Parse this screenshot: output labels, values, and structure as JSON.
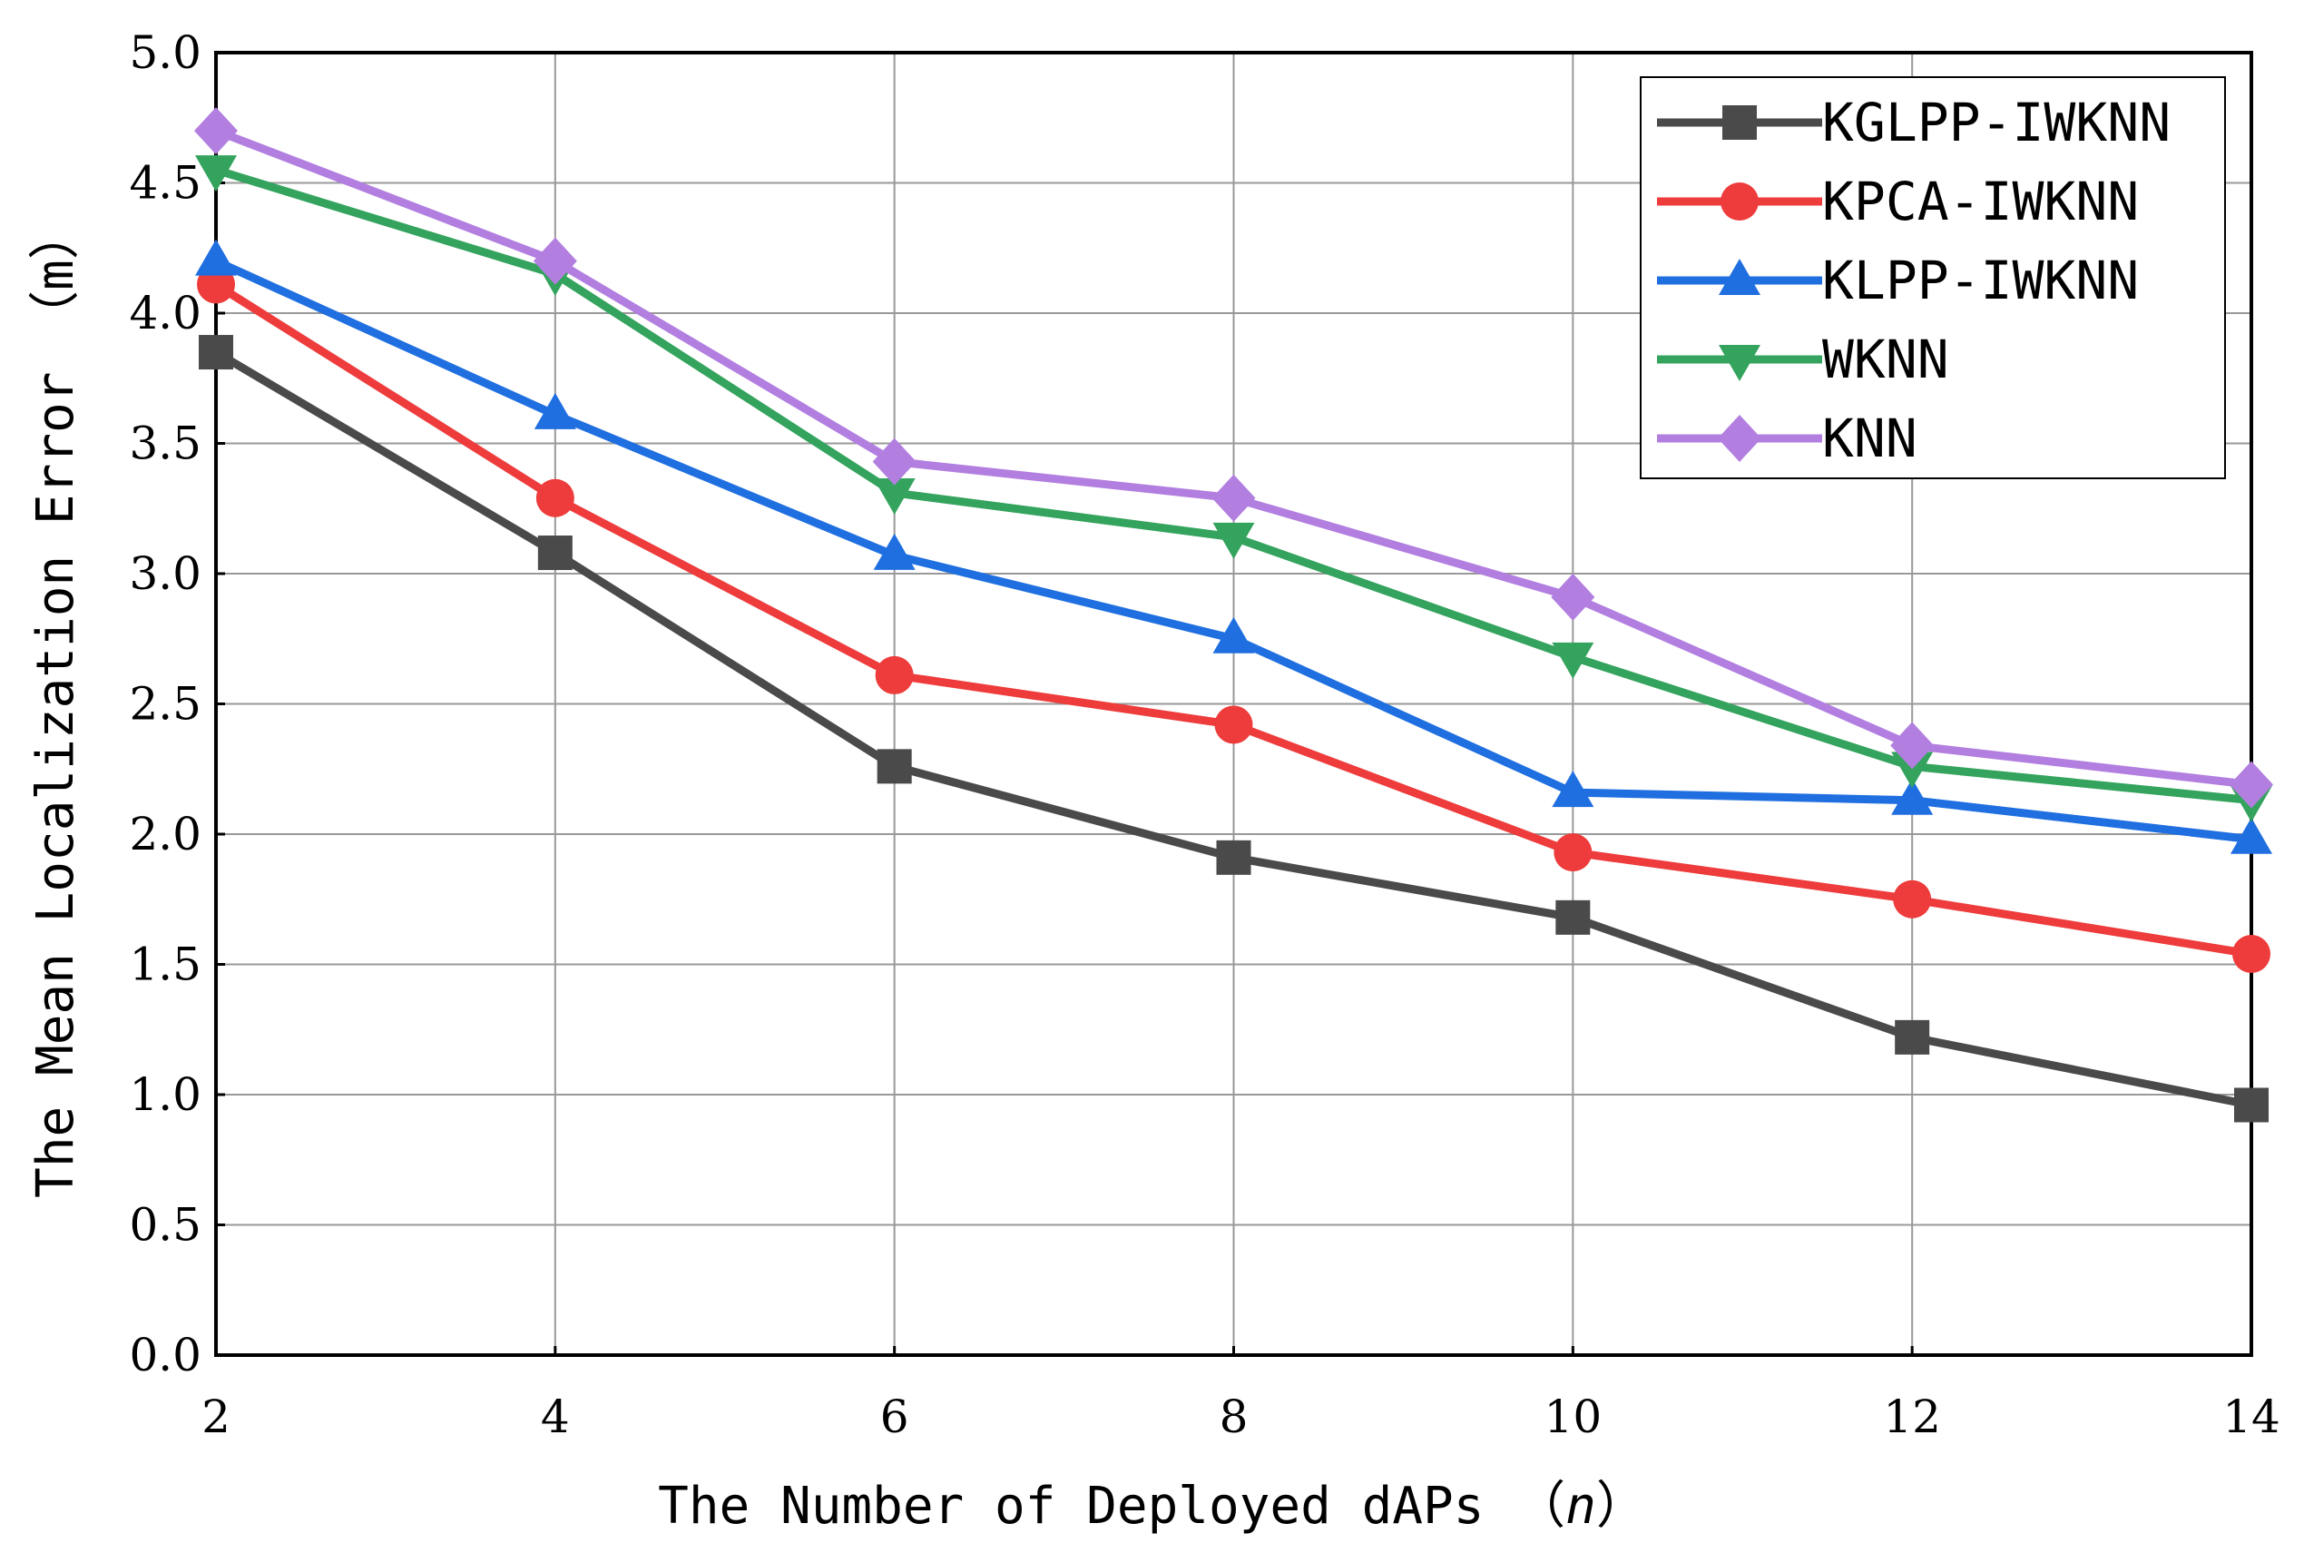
{
  "chart_data": {
    "type": "line",
    "title": "",
    "xlabel": "The Number of Deployed dAPs",
    "xlabel_var": "n",
    "ylabel": "The Mean Localization Error",
    "ylabel_unit": "m",
    "x": [
      2,
      4,
      6,
      8,
      10,
      12,
      14
    ],
    "x_tick_labels": [
      "2",
      "4",
      "6",
      "8",
      "10",
      "12",
      "14"
    ],
    "y_ticks": [
      0.0,
      0.5,
      1.0,
      1.5,
      2.0,
      2.5,
      3.0,
      3.5,
      4.0,
      4.5,
      5.0
    ],
    "y_tick_labels": [
      "0.0",
      "0.5",
      "1.0",
      "1.5",
      "2.0",
      "2.5",
      "3.0",
      "3.5",
      "4.0",
      "4.5",
      "5.0"
    ],
    "xlim": [
      2,
      14
    ],
    "ylim": [
      0,
      5
    ],
    "grid": true,
    "legend_position": "top-right",
    "series": [
      {
        "name": "KGLPP-IWKNN",
        "color": "#4a4a4a",
        "marker": "square",
        "values": [
          3.85,
          3.08,
          2.26,
          1.91,
          1.68,
          1.22,
          0.96
        ]
      },
      {
        "name": "KPCA-IWKNN",
        "color": "#ee3b3b",
        "marker": "circle",
        "values": [
          4.11,
          3.29,
          2.61,
          2.42,
          1.93,
          1.75,
          1.54
        ]
      },
      {
        "name": "KLPP-IWKNN",
        "color": "#1f6fe0",
        "marker": "triangle-up",
        "values": [
          4.2,
          3.61,
          3.07,
          2.75,
          2.16,
          2.13,
          1.98
        ]
      },
      {
        "name": "WKNN",
        "color": "#34a35d",
        "marker": "triangle-down",
        "values": [
          4.55,
          4.15,
          3.31,
          3.14,
          2.68,
          2.26,
          2.13
        ]
      },
      {
        "name": "KNN",
        "color": "#b27fe0",
        "marker": "diamond",
        "values": [
          4.7,
          4.2,
          3.43,
          3.29,
          2.91,
          2.34,
          2.19
        ]
      }
    ]
  }
}
